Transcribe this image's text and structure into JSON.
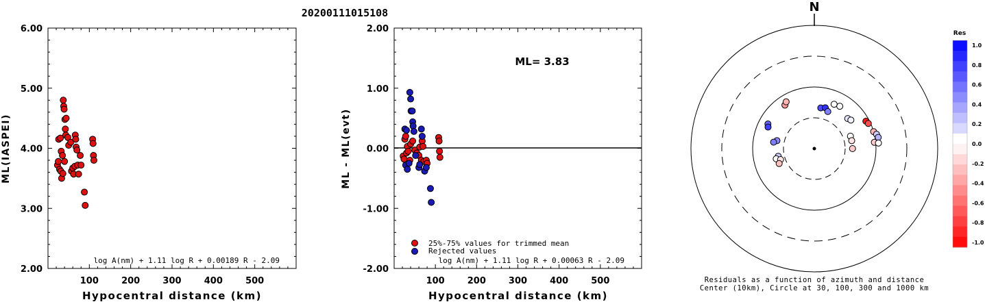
{
  "title": "20200111015108",
  "north_label": "N",
  "chart_data": [
    {
      "type": "scatter",
      "id": "left",
      "xlabel": "Hypocentral distance (km)",
      "ylabel": "ML(IASPEI)",
      "xlim": [
        0,
        600
      ],
      "ylim": [
        2.0,
        6.0
      ],
      "xticks": [
        "100",
        "200",
        "300",
        "400",
        "500"
      ],
      "yticks": [
        "2.00",
        "3.00",
        "4.00",
        "5.00",
        "6.00"
      ],
      "formula": "log A(nm) + 1.11 log R + 0.00189 R - 2.09",
      "points": [
        [
          23,
          3.72
        ],
        [
          25,
          3.78
        ],
        [
          26,
          4.15
        ],
        [
          28,
          3.65
        ],
        [
          30,
          4.17
        ],
        [
          31,
          3.62
        ],
        [
          32,
          3.95
        ],
        [
          33,
          3.5
        ],
        [
          35,
          3.88
        ],
        [
          36,
          3.58
        ],
        [
          37,
          4.8
        ],
        [
          38,
          4.7
        ],
        [
          39,
          4.65
        ],
        [
          40,
          3.78
        ],
        [
          41,
          4.48
        ],
        [
          42,
          4.32
        ],
        [
          43,
          4.22
        ],
        [
          44,
          4.5
        ],
        [
          48,
          4.18
        ],
        [
          50,
          4.05
        ],
        [
          55,
          4.1
        ],
        [
          57,
          3.62
        ],
        [
          60,
          3.67
        ],
        [
          62,
          3.57
        ],
        [
          65,
          3.7
        ],
        [
          66,
          4.22
        ],
        [
          67,
          4.15
        ],
        [
          68,
          4.02
        ],
        [
          70,
          3.97
        ],
        [
          72,
          3.72
        ],
        [
          74,
          3.57
        ],
        [
          78,
          3.88
        ],
        [
          80,
          3.72
        ],
        [
          88,
          3.27
        ],
        [
          90,
          3.05
        ],
        [
          108,
          4.15
        ],
        [
          109,
          4.08
        ],
        [
          110,
          3.88
        ],
        [
          111,
          3.8
        ]
      ]
    },
    {
      "type": "scatter",
      "id": "middle",
      "xlabel": "Hypocentral distance (km)",
      "ylabel": "ML - ML(evt)",
      "xlim": [
        0,
        600
      ],
      "ylim": [
        -2.0,
        2.0
      ],
      "xticks": [
        "100",
        "200",
        "300",
        "400",
        "500"
      ],
      "yticks": [
        "-2.00",
        "-1.00",
        "0.00",
        "1.00",
        "2.00"
      ],
      "annotation": "ML= 3.83",
      "formula": "log A(nm) + 1.11 log R + 0.00063 R - 2.09",
      "legend": [
        "25%-75% values for trimmed mean",
        "Rejected values"
      ],
      "series": [
        {
          "name": "25%-75% values for trimmed mean",
          "color": "#dd1111",
          "points": [
            [
              22,
              -0.13
            ],
            [
              24,
              -0.18
            ],
            [
              26,
              0.15
            ],
            [
              28,
              0.2
            ],
            [
              30,
              -0.08
            ],
            [
              32,
              0.03
            ],
            [
              34,
              -0.05
            ],
            [
              38,
              -0.2
            ],
            [
              40,
              0.07
            ],
            [
              45,
              0.12
            ],
            [
              50,
              -0.03
            ],
            [
              55,
              -0.08
            ],
            [
              60,
              -0.12
            ],
            [
              62,
              0.02
            ],
            [
              66,
              -0.2
            ],
            [
              68,
              0.12
            ],
            [
              70,
              0.03
            ],
            [
              72,
              -0.22
            ],
            [
              78,
              -0.2
            ],
            [
              80,
              -0.25
            ],
            [
              108,
              0.18
            ],
            [
              109,
              0.12
            ],
            [
              110,
              -0.05
            ],
            [
              111,
              -0.15
            ]
          ]
        },
        {
          "name": "Rejected values",
          "color": "#1a1ab4",
          "points": [
            [
              26,
              0.32
            ],
            [
              28,
              -0.28
            ],
            [
              30,
              0.3
            ],
            [
              32,
              -0.35
            ],
            [
              36,
              -0.25
            ],
            [
              38,
              0.93
            ],
            [
              40,
              0.82
            ],
            [
              41,
              0.62
            ],
            [
              44,
              0.62
            ],
            [
              45,
              0.44
            ],
            [
              46,
              0.37
            ],
            [
              48,
              0.28
            ],
            [
              52,
              -0.12
            ],
            [
              60,
              -0.32
            ],
            [
              62,
              -0.27
            ],
            [
              66,
              0.32
            ],
            [
              68,
              0.2
            ],
            [
              74,
              -0.38
            ],
            [
              78,
              -0.32
            ],
            [
              88,
              -0.67
            ],
            [
              90,
              -0.9
            ]
          ]
        }
      ]
    }
  ],
  "polar": {
    "caption_line1": "Residuals as a function of azimuth and distance",
    "caption_line2": "Center (10km), Circle at 30, 100, 300 and 1000 km",
    "points": [
      {
        "az": 282,
        "dist": 40,
        "res": 0.45
      },
      {
        "az": 279,
        "dist": 45,
        "res": 0.5
      },
      {
        "az": 258,
        "dist": 38,
        "res": 0.2
      },
      {
        "az": 255,
        "dist": 42,
        "res": 0.0
      },
      {
        "az": 252,
        "dist": 36,
        "res": -0.1
      },
      {
        "az": 247,
        "dist": 40,
        "res": -0.25
      },
      {
        "az": 298,
        "dist": 70,
        "res": 0.6
      },
      {
        "az": 295,
        "dist": 66,
        "res": 0.75
      },
      {
        "az": 326,
        "dist": 70,
        "res": -0.4
      },
      {
        "az": 329,
        "dist": 76,
        "res": -0.3
      },
      {
        "az": 9,
        "dist": 45,
        "res": 0.7
      },
      {
        "az": 15,
        "dist": 47,
        "res": 0.8
      },
      {
        "az": 20,
        "dist": 42,
        "res": 0.5
      },
      {
        "az": 24,
        "dist": 60,
        "res": 0.0
      },
      {
        "az": 31,
        "dist": 62,
        "res": 0.0
      },
      {
        "az": 48,
        "dist": 52,
        "res": 0.1
      },
      {
        "az": 52,
        "dist": 55,
        "res": 0.05
      },
      {
        "az": 71,
        "dist": 40,
        "res": 0.0
      },
      {
        "az": 78,
        "dist": 40,
        "res": -0.1
      },
      {
        "az": 90,
        "dist": 40,
        "res": -0.2
      },
      {
        "az": 62,
        "dist": 88,
        "res": -0.9
      },
      {
        "az": 65,
        "dist": 92,
        "res": -0.7
      },
      {
        "az": 74,
        "dist": 100,
        "res": -0.3
      },
      {
        "az": 77,
        "dist": 108,
        "res": 0.2
      },
      {
        "az": 80,
        "dist": 112,
        "res": 0.3
      },
      {
        "az": 84,
        "dist": 95,
        "res": -0.2
      },
      {
        "az": 85,
        "dist": 110,
        "res": 0.0
      }
    ]
  },
  "colorbar": {
    "title": "Res",
    "labels": [
      "1.0",
      "0.8",
      "0.6",
      "0.4",
      "0.2",
      "0.0",
      "-0.2",
      "-0.4",
      "-0.6",
      "-0.8",
      "-1.0"
    ],
    "positive_color": "#0000ff",
    "negative_color": "#ff0000"
  }
}
